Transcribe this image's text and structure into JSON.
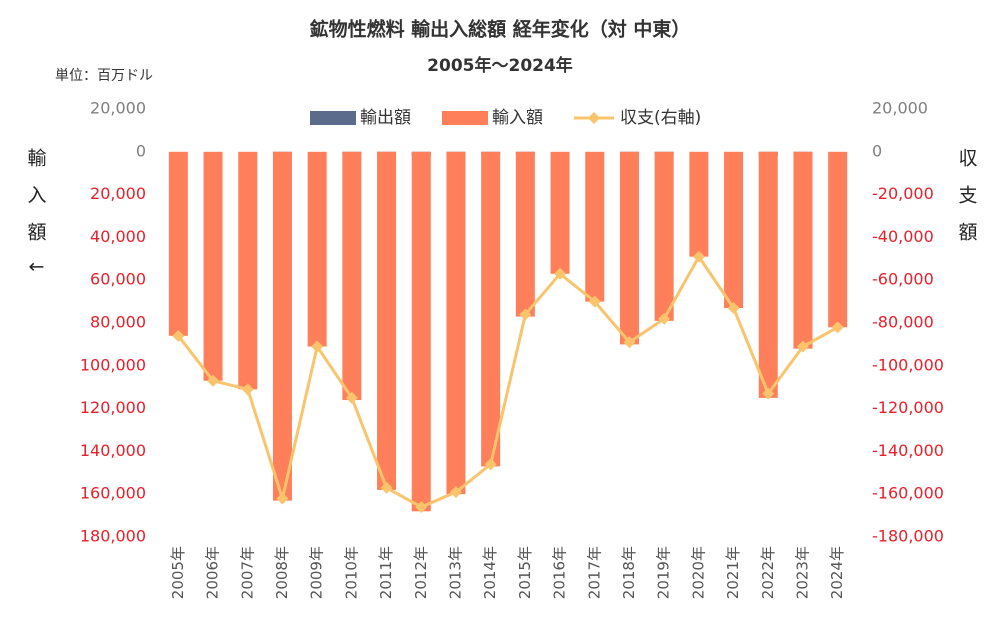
{
  "chart_data": {
    "type": "bar",
    "title": "鉱物性燃料 輸出入総額 経年変化（対 中東）",
    "subtitle": "2005年～2024年",
    "unit_label": "単位：百万ドル",
    "y_label": "輸入額↓",
    "y2_label": "収支額",
    "y_inverted": true,
    "categories": [
      "2005年",
      "2006年",
      "2007年",
      "2008年",
      "2009年",
      "2010年",
      "2011年",
      "2012年",
      "2013年",
      "2014年",
      "2015年",
      "2016年",
      "2017年",
      "2018年",
      "2019年",
      "2020年",
      "2021年",
      "2022年",
      "2023年",
      "2024年"
    ],
    "series": [
      {
        "name": "輸出額",
        "type": "bar",
        "color": "#5b6b8c",
        "values": [
          0,
          0,
          0,
          1000,
          0,
          1000,
          1000,
          2000,
          1000,
          1000,
          1000,
          0,
          0,
          1000,
          1000,
          0,
          0,
          2000,
          1000,
          0
        ]
      },
      {
        "name": "輸入額",
        "type": "bar",
        "color": "#ff7f5a",
        "values": [
          86000,
          107000,
          111000,
          163000,
          91000,
          116000,
          158000,
          168000,
          160000,
          147000,
          77000,
          57000,
          70000,
          90000,
          79000,
          49000,
          73000,
          115000,
          92000,
          82000
        ]
      },
      {
        "name": "収支(右軸)",
        "type": "line",
        "axis": "y2",
        "color": "#f9c46b",
        "values": [
          -86000,
          -107000,
          -111000,
          -162000,
          -91000,
          -115000,
          -157000,
          -166000,
          -159000,
          -146000,
          -76000,
          -57000,
          -70000,
          -89000,
          -78000,
          -49000,
          -73000,
          -113000,
          -91000,
          -82000
        ]
      }
    ],
    "ylim": [
      -20000,
      180000
    ],
    "yticks": [
      {
        "value": -20000,
        "label": "20,000"
      },
      0,
      {
        "value": 20000,
        "label": "20,000"
      },
      {
        "value": 40000,
        "label": "40,000"
      },
      {
        "value": 60000,
        "label": "60,000"
      },
      {
        "value": 80000,
        "label": "80,000"
      },
      {
        "value": 100000,
        "label": "100,000"
      },
      {
        "value": 120000,
        "label": "120,000"
      },
      {
        "value": 140000,
        "label": "140,000"
      },
      {
        "value": 160000,
        "label": "160,000"
      },
      {
        "value": 180000,
        "label": "180,000"
      }
    ],
    "y2lim": [
      -180000,
      20000
    ],
    "y2ticks": [
      {
        "value": 20000,
        "label": "20,000"
      },
      0,
      {
        "value": -20000,
        "label": "-20,000"
      },
      {
        "value": -40000,
        "label": "-40,000"
      },
      {
        "value": -60000,
        "label": "-60,000"
      },
      {
        "value": -80000,
        "label": "-80,000"
      },
      {
        "value": -100000,
        "label": "-100,000"
      },
      {
        "value": -120000,
        "label": "-120,000"
      },
      {
        "value": -140000,
        "label": "-140,000"
      },
      {
        "value": -160000,
        "label": "-160,000"
      },
      {
        "value": -180000,
        "label": "-180,000"
      }
    ],
    "legend": "top"
  }
}
